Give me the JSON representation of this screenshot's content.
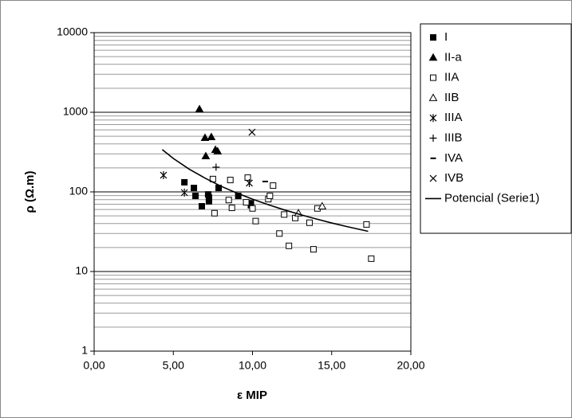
{
  "chart_data": {
    "type": "scatter",
    "x_label": "ε MIP",
    "y_label": "ρ (Ω.m)",
    "xlim": [
      0,
      20
    ],
    "xticks": [
      {
        "value": 0,
        "label": "0,00"
      },
      {
        "value": 5,
        "label": "5,00"
      },
      {
        "value": 10,
        "label": "10,00"
      },
      {
        "value": 15,
        "label": "15,00"
      },
      {
        "value": 20,
        "label": "20,00"
      }
    ],
    "ylim": [
      1,
      10000
    ],
    "yticks": [
      1,
      10,
      100,
      1000,
      10000
    ],
    "y_log": true,
    "grid": true,
    "minor_grid": true,
    "legend": "right",
    "series": [
      {
        "name": "I",
        "marker": "square-filled",
        "color": "#000000",
        "x": [
          5.7,
          6.3,
          6.4,
          6.8,
          7.2,
          7.25,
          7.25,
          7.86,
          9.1,
          9.9,
          9.9
        ],
        "values": [
          132,
          112,
          89,
          66,
          93,
          85,
          76,
          112,
          89,
          72,
          68
        ]
      },
      {
        "name": "II-a",
        "marker": "triangle-filled",
        "color": "#000000",
        "x": [
          6.65,
          7.0,
          7.4,
          7.05,
          7.66,
          7.8
        ],
        "values": [
          1096,
          479,
          490,
          282,
          339,
          324
        ]
      },
      {
        "name": "IIA",
        "marker": "square",
        "color": "#000000",
        "x": [
          7.5,
          7.6,
          8.6,
          8.5,
          8.7,
          9.7,
          9.6,
          10.0,
          10.2,
          11.0,
          11.1,
          11.3,
          11.7,
          12.0,
          12.3,
          12.7,
          13.6,
          13.85,
          14.1,
          17.2,
          17.5
        ],
        "values": [
          145,
          54,
          141,
          79,
          63,
          151,
          74,
          62,
          43,
          81,
          89,
          120,
          30,
          52,
          21,
          47,
          41,
          19,
          62,
          39,
          14.5
        ]
      },
      {
        "name": "IIB",
        "marker": "triangle",
        "color": "#000000",
        "x": [
          12.9,
          14.4
        ],
        "values": [
          54,
          66
        ]
      },
      {
        "name": "IIIA",
        "marker": "asterisk",
        "color": "#000000",
        "x": [
          4.38,
          5.7,
          9.8
        ],
        "values": [
          162,
          98,
          129
        ]
      },
      {
        "name": "IIIB",
        "marker": "plus",
        "color": "#000000",
        "x": [
          7.7
        ],
        "values": [
          204
        ]
      },
      {
        "name": "IVA",
        "marker": "dash",
        "color": "#000000",
        "x": [
          10.8
        ],
        "values": [
          135
        ]
      },
      {
        "name": "IVB",
        "marker": "x",
        "color": "#000000",
        "x": [
          9.97
        ],
        "values": [
          562
        ]
      },
      {
        "name": "Potencial (Serie1)",
        "marker": "line",
        "color": "#000000",
        "x": [
          4.3,
          5,
          6,
          7,
          8,
          9,
          10,
          11,
          12,
          13,
          14,
          15,
          16,
          17.3
        ],
        "values": [
          340,
          263,
          193,
          149,
          118,
          97,
          81,
          69,
          59.5,
          52,
          45.8,
          40.7,
          36.5,
          32
        ]
      }
    ]
  }
}
